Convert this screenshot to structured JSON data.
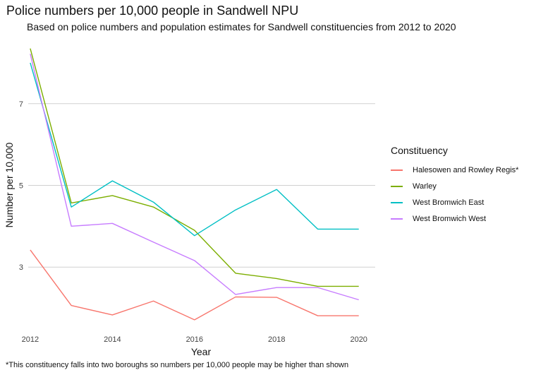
{
  "chart_data": {
    "type": "line",
    "title": "Police numbers per 10,000 people in Sandwell NPU",
    "subtitle": "Based on police numbers and population estimates for Sandwell constituencies from 2012 to 2020",
    "xlabel": "Year",
    "ylabel": "Number per 10,000",
    "caption": "*This constituency falls into two boroughs so numbers per 10,000 people may be higher than shown",
    "x": [
      2012,
      2013,
      2014,
      2015,
      2016,
      2017,
      2018,
      2019,
      2020
    ],
    "x_ticks": [
      "2012",
      "2014",
      "2016",
      "2018",
      "2020"
    ],
    "y_ticks": [
      "3",
      "5",
      "7"
    ],
    "xlim": [
      2011.95,
      2020.4
    ],
    "ylim": [
      1.5,
      8.5
    ],
    "grid": true,
    "legend_title": "Constituency",
    "legend_position": "right",
    "series": [
      {
        "name": "Halesowen and Rowley Regis*",
        "color": "#F8766D",
        "values": [
          3.42,
          2.06,
          1.83,
          2.17,
          1.71,
          2.27,
          2.26,
          1.81,
          1.81
        ]
      },
      {
        "name": "Warley",
        "color": "#7CAE00",
        "values": [
          8.35,
          4.57,
          4.75,
          4.47,
          3.9,
          2.85,
          2.72,
          2.53,
          2.53
        ]
      },
      {
        "name": "West Bromwich East",
        "color": "#00BFC4",
        "values": [
          8.0,
          4.47,
          5.11,
          4.59,
          3.77,
          4.4,
          4.9,
          3.93,
          3.93
        ]
      },
      {
        "name": "West Bromwich West",
        "color": "#C77CFF",
        "values": [
          8.22,
          4.0,
          4.07,
          3.61,
          3.16,
          2.33,
          2.5,
          2.5,
          2.2
        ]
      }
    ]
  }
}
